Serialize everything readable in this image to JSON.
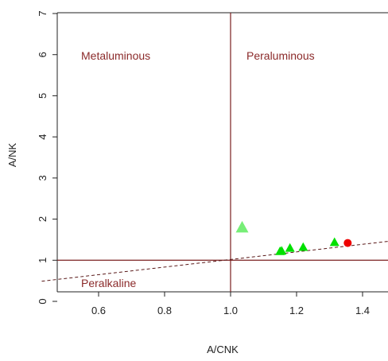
{
  "chart_data": {
    "type": "scatter",
    "xlabel": "A/CNK",
    "ylabel": "A/NK",
    "xlim": [
      0.5,
      1.5
    ],
    "ylim": [
      0,
      7
    ],
    "x_ticks": [
      "0.6",
      "0.8",
      "1.0",
      "1.2",
      "1.4"
    ],
    "y_ticks": [
      "0",
      "1",
      "2",
      "3",
      "4",
      "5",
      "6",
      "7"
    ],
    "grid": false,
    "region_labels": [
      "Metaluminous",
      "Peraluminous",
      "Peralkaline"
    ],
    "reference_lines": {
      "vertical_x": 1.0,
      "horizontal_y": 1.0,
      "dashed_line_through": [
        [
          0.5,
          0.52
        ],
        [
          1.5,
          1.48
        ]
      ]
    },
    "series": [
      {
        "marker": "triangle",
        "color": "#00e000",
        "points": [
          [
            1.035,
            1.8
          ],
          [
            1.15,
            1.22
          ],
          [
            1.155,
            1.23
          ],
          [
            1.18,
            1.3
          ],
          [
            1.22,
            1.32
          ],
          [
            1.315,
            1.44
          ]
        ]
      },
      {
        "marker": "circle",
        "color": "#ee0000",
        "points": [
          [
            1.355,
            1.42
          ]
        ]
      }
    ],
    "colors": {
      "region_label": "#8b2a2a",
      "reference_line": "#7a1f1f",
      "axis": "#222222"
    }
  }
}
